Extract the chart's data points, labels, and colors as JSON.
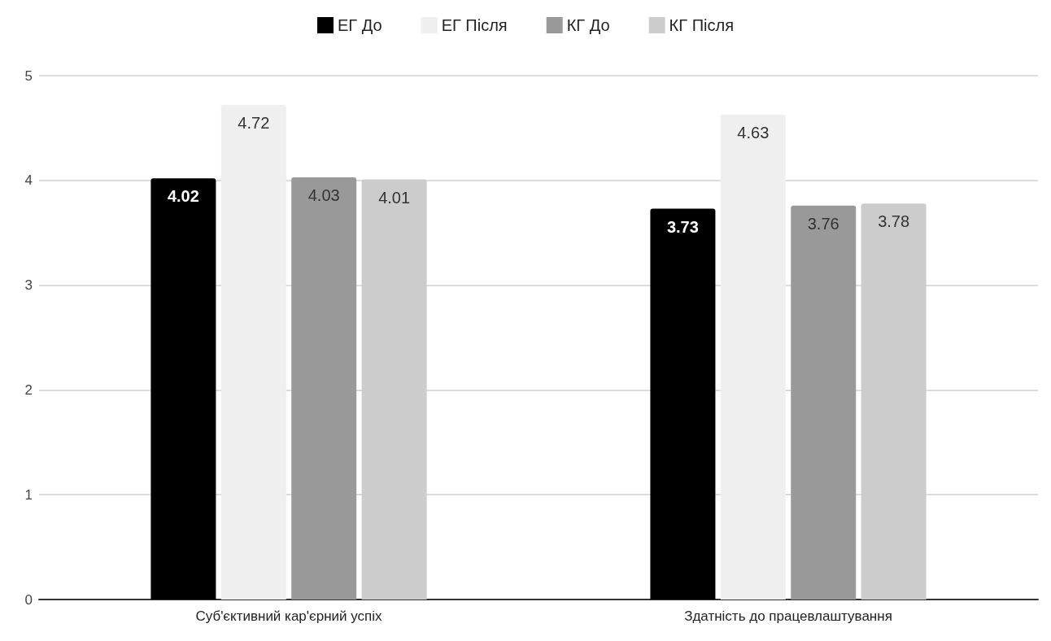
{
  "chart_data": {
    "type": "bar",
    "categories": [
      "Суб'єктивний кар'єрний успіх",
      "Здатність до працевлаштування"
    ],
    "series": [
      {
        "name": "ЕГ До",
        "color": "#000000",
        "values": [
          4.02,
          3.73
        ]
      },
      {
        "name": "ЕГ Після",
        "color": "#efefef",
        "values": [
          4.72,
          4.63
        ]
      },
      {
        "name": "КГ До",
        "color": "#999999",
        "values": [
          4.03,
          3.76
        ]
      },
      {
        "name": "КГ Після",
        "color": "#cccccc",
        "values": [
          4.01,
          3.78
        ]
      }
    ],
    "ylim": [
      0,
      5
    ],
    "yticks": [
      0,
      1,
      2,
      3,
      4,
      5
    ],
    "grid": true,
    "legend": "top",
    "data_labels": true
  }
}
